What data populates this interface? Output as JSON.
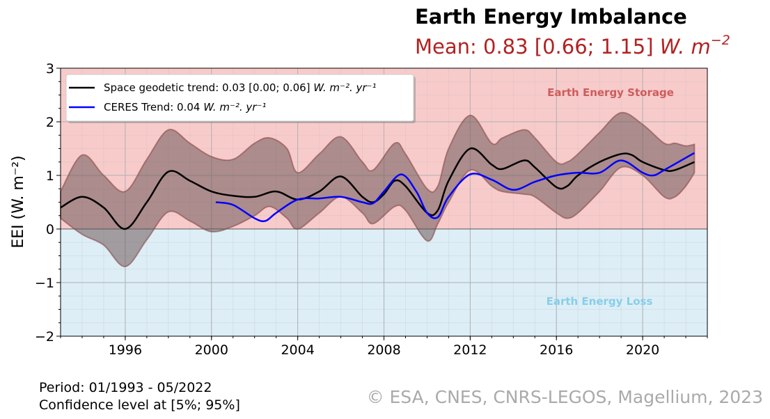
{
  "header": {
    "title": "Earth Energy Imbalance",
    "subtitle": "Mean: 0.83 [0.66; 1.15] ",
    "subtitle_unit": "W. m",
    "subtitle_exp": "−2"
  },
  "footer": {
    "period": "Period: 01/1993 - 05/2022",
    "confidence": "Confidence level at [5%; 95%]",
    "copyright": "© ESA, CNES, CNRS-LEGOS, Magellium, 2023"
  },
  "colors": {
    "storage_bg": "#f8cbcb",
    "loss_bg": "#ddeef6",
    "band": "#8b4a4a",
    "geodetic": "#000000",
    "ceres": "#0000ff",
    "title_red": "#b22222",
    "storage_label": "#cd5c5c",
    "loss_label": "#87ceeb",
    "copyright": "#aaaaaa"
  },
  "chart_data": {
    "type": "line",
    "title": "Earth Energy Imbalance",
    "ylabel": "EEI (W. m⁻²)",
    "xlabel": "",
    "xlim": [
      1993,
      2023
    ],
    "ylim": [
      -2,
      3
    ],
    "xticks": [
      "1996",
      "2000",
      "2004",
      "2008",
      "2012",
      "2016",
      "2020"
    ],
    "yticks": [
      "3",
      "2",
      "1",
      "0",
      "−1",
      "−2"
    ],
    "grid": true,
    "legend_position": "top-left",
    "annotations": [
      "Earth Energy Storage",
      "Earth Energy Loss"
    ],
    "series": [
      {
        "name": "Space geodetic trend: 0.03 [0.00; 0.06] W. m⁻². yr⁻¹",
        "legend_text": "Space geodetic trend: 0.03 [0.00; 0.06] ",
        "unit": "W. m⁻². yr⁻¹",
        "x": [
          1993,
          1994,
          1995,
          1996,
          1997,
          1998,
          1999,
          2000,
          2001,
          2002,
          2003,
          2004,
          2005,
          2006,
          2007,
          2007.5,
          2008,
          2008.5,
          2009,
          2010,
          2010.5,
          2011,
          2012,
          2013,
          2013.5,
          2014.5,
          2015,
          2016,
          2016.5,
          2017,
          2018,
          2019,
          2019.5,
          2020,
          2021,
          2021.5,
          2022.4
        ],
        "y": [
          0.4,
          0.6,
          0.4,
          0.0,
          0.5,
          1.07,
          0.9,
          0.7,
          0.62,
          0.6,
          0.7,
          0.55,
          0.7,
          0.98,
          0.6,
          0.5,
          0.65,
          0.9,
          0.8,
          0.3,
          0.35,
          0.9,
          1.5,
          1.2,
          1.12,
          1.28,
          1.15,
          0.78,
          0.8,
          1.0,
          1.25,
          1.4,
          1.38,
          1.25,
          1.1,
          1.1,
          1.25
        ]
      },
      {
        "name": "CERES Trend: 0.04 W. m⁻². yr⁻¹",
        "legend_text": "CERES Trend: 0.04 ",
        "unit": "W. m⁻². yr⁻¹",
        "x": [
          2000.2,
          2001,
          2002,
          2002.5,
          2003,
          2004,
          2005,
          2006,
          2007,
          2007.5,
          2008,
          2008.8,
          2009.5,
          2010,
          2010.5,
          2011,
          2012,
          2013,
          2014,
          2015,
          2016,
          2017,
          2018,
          2019,
          2020,
          2020.5,
          2021,
          2022.4
        ],
        "y": [
          0.5,
          0.45,
          0.2,
          0.15,
          0.3,
          0.55,
          0.57,
          0.6,
          0.5,
          0.48,
          0.7,
          1.02,
          0.7,
          0.3,
          0.22,
          0.6,
          1.02,
          0.92,
          0.73,
          0.88,
          1.0,
          1.05,
          1.05,
          1.28,
          1.05,
          1.0,
          1.1,
          1.42
        ]
      }
    ],
    "confidence_band": {
      "x": [
        1993,
        1994,
        1995,
        1996,
        1997,
        1998,
        1999,
        2000,
        2001,
        2002,
        2002.7,
        2003.5,
        2004,
        2005,
        2006,
        2007,
        2007.5,
        2008.5,
        2009,
        2010,
        2010.5,
        2011,
        2012,
        2013,
        2013.5,
        2014.5,
        2015,
        2016,
        2016.5,
        2017,
        2018,
        2019,
        2020,
        2021,
        2021.5,
        2022,
        2022.4
      ],
      "upper": [
        0.7,
        1.38,
        1.0,
        0.7,
        1.3,
        1.85,
        1.6,
        1.35,
        1.3,
        1.6,
        1.7,
        1.5,
        1.05,
        1.4,
        1.72,
        1.25,
        1.1,
        1.6,
        1.4,
        0.75,
        0.8,
        1.5,
        2.12,
        1.6,
        1.7,
        1.85,
        1.7,
        1.25,
        1.25,
        1.4,
        1.8,
        2.17,
        1.95,
        1.6,
        1.6,
        1.55,
        1.58
      ],
      "lower": [
        0.2,
        -0.1,
        -0.3,
        -0.7,
        -0.2,
        0.32,
        0.15,
        -0.05,
        0.05,
        0.25,
        0.42,
        0.2,
        0.0,
        0.3,
        0.6,
        0.3,
        0.1,
        0.42,
        0.35,
        -0.22,
        0.1,
        0.5,
        1.1,
        0.8,
        0.7,
        0.65,
        0.6,
        0.3,
        0.2,
        0.3,
        0.7,
        1.15,
        1.0,
        0.6,
        0.6,
        0.8,
        1.05
      ]
    }
  }
}
